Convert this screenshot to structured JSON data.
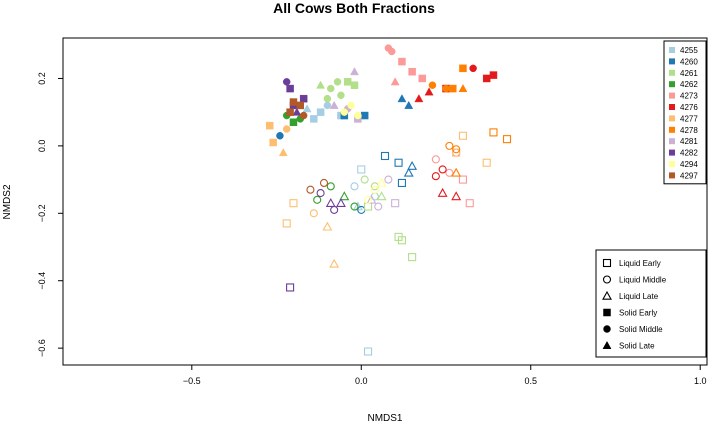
{
  "chart_data": {
    "type": "scatter",
    "title": "All Cows Both Fractions",
    "xlabel": "NMDS1",
    "ylabel": "NMDS2",
    "xlim": [
      -0.88,
      1.02
    ],
    "ylim": [
      -0.65,
      0.32
    ],
    "xticks": [
      -0.5,
      0.0,
      0.5,
      1.0
    ],
    "xtick_labels": [
      "−0.5",
      "0.0",
      "0.5",
      "1.0"
    ],
    "yticks": [
      -0.6,
      -0.4,
      -0.2,
      0.0,
      0.2
    ],
    "ytick_labels": [
      "−0.6",
      "−0.4",
      "−0.2",
      "0.0",
      "0.2"
    ],
    "legend_position": "top-right",
    "shape_legend_position": "bottom-right",
    "series": [
      {
        "name": "4255",
        "color": "#A6CEE3",
        "points": [
          {
            "x": -0.12,
            "y": 0.1,
            "shape": "solid-square"
          },
          {
            "x": -0.14,
            "y": 0.08,
            "shape": "solid-square"
          },
          {
            "x": -0.1,
            "y": 0.12,
            "shape": "solid-circle"
          },
          {
            "x": -0.16,
            "y": 0.11,
            "shape": "solid-triangle"
          },
          {
            "x": -0.06,
            "y": 0.09,
            "shape": "solid-square"
          },
          {
            "x": 0.0,
            "y": -0.07,
            "shape": "liquid-square"
          },
          {
            "x": 0.02,
            "y": -0.61,
            "shape": "liquid-square"
          },
          {
            "x": -0.02,
            "y": -0.12,
            "shape": "liquid-circle"
          },
          {
            "x": 0.04,
            "y": -0.15,
            "shape": "liquid-circle"
          },
          {
            "x": -0.01,
            "y": -0.18,
            "shape": "liquid-triangle"
          }
        ]
      },
      {
        "name": "4260",
        "color": "#1F78B4",
        "points": [
          {
            "x": -0.24,
            "y": 0.03,
            "shape": "solid-circle"
          },
          {
            "x": -0.05,
            "y": 0.09,
            "shape": "solid-square"
          },
          {
            "x": 0.01,
            "y": 0.09,
            "shape": "solid-square"
          },
          {
            "x": 0.12,
            "y": 0.14,
            "shape": "solid-triangle"
          },
          {
            "x": 0.14,
            "y": 0.12,
            "shape": "solid-triangle"
          },
          {
            "x": 0.07,
            "y": -0.03,
            "shape": "liquid-square"
          },
          {
            "x": 0.11,
            "y": -0.05,
            "shape": "liquid-square"
          },
          {
            "x": 0.15,
            "y": -0.06,
            "shape": "liquid-triangle"
          },
          {
            "x": 0.14,
            "y": -0.08,
            "shape": "liquid-triangle"
          },
          {
            "x": 0.12,
            "y": -0.11,
            "shape": "liquid-square"
          },
          {
            "x": 0.0,
            "y": -0.19,
            "shape": "liquid-circle"
          }
        ]
      },
      {
        "name": "4261",
        "color": "#B2DF8A",
        "points": [
          {
            "x": -0.12,
            "y": 0.18,
            "shape": "solid-triangle"
          },
          {
            "x": -0.09,
            "y": 0.17,
            "shape": "solid-circle"
          },
          {
            "x": -0.07,
            "y": 0.19,
            "shape": "solid-circle"
          },
          {
            "x": -0.04,
            "y": 0.19,
            "shape": "solid-square"
          },
          {
            "x": -0.02,
            "y": 0.18,
            "shape": "solid-square"
          },
          {
            "x": -0.1,
            "y": 0.14,
            "shape": "solid-circle"
          },
          {
            "x": -0.06,
            "y": 0.15,
            "shape": "solid-circle"
          },
          {
            "x": 0.01,
            "y": -0.1,
            "shape": "liquid-circle"
          },
          {
            "x": 0.04,
            "y": -0.12,
            "shape": "liquid-circle"
          },
          {
            "x": 0.06,
            "y": -0.15,
            "shape": "liquid-triangle"
          },
          {
            "x": 0.02,
            "y": -0.18,
            "shape": "liquid-square"
          },
          {
            "x": 0.12,
            "y": -0.28,
            "shape": "liquid-square"
          },
          {
            "x": 0.15,
            "y": -0.33,
            "shape": "liquid-square"
          },
          {
            "x": 0.11,
            "y": -0.27,
            "shape": "liquid-square"
          }
        ]
      },
      {
        "name": "4262",
        "color": "#33A02C",
        "points": [
          {
            "x": -0.22,
            "y": 0.09,
            "shape": "solid-circle"
          },
          {
            "x": -0.2,
            "y": 0.07,
            "shape": "solid-square"
          },
          {
            "x": -0.18,
            "y": 0.08,
            "shape": "solid-circle"
          },
          {
            "x": -0.09,
            "y": -0.12,
            "shape": "liquid-circle"
          },
          {
            "x": -0.05,
            "y": -0.15,
            "shape": "liquid-triangle"
          },
          {
            "x": -0.13,
            "y": -0.16,
            "shape": "liquid-circle"
          },
          {
            "x": -0.02,
            "y": -0.18,
            "shape": "liquid-circle"
          }
        ]
      },
      {
        "name": "4273",
        "color": "#FB9A99",
        "points": [
          {
            "x": 0.08,
            "y": 0.29,
            "shape": "solid-circle"
          },
          {
            "x": 0.09,
            "y": 0.28,
            "shape": "solid-circle"
          },
          {
            "x": 0.12,
            "y": 0.25,
            "shape": "solid-square"
          },
          {
            "x": 0.15,
            "y": 0.22,
            "shape": "solid-square"
          },
          {
            "x": 0.1,
            "y": 0.19,
            "shape": "solid-triangle"
          },
          {
            "x": 0.18,
            "y": 0.2,
            "shape": "solid-square"
          },
          {
            "x": 0.22,
            "y": -0.04,
            "shape": "liquid-circle"
          },
          {
            "x": 0.28,
            "y": -0.02,
            "shape": "liquid-circle"
          },
          {
            "x": 0.3,
            "y": -0.1,
            "shape": "liquid-square"
          },
          {
            "x": 0.32,
            "y": -0.17,
            "shape": "liquid-square"
          },
          {
            "x": 0.26,
            "y": -0.08,
            "shape": "liquid-circle"
          }
        ]
      },
      {
        "name": "4276",
        "color": "#E31A1C",
        "points": [
          {
            "x": 0.17,
            "y": 0.14,
            "shape": "solid-triangle"
          },
          {
            "x": 0.2,
            "y": 0.16,
            "shape": "solid-triangle"
          },
          {
            "x": 0.25,
            "y": 0.17,
            "shape": "solid-square"
          },
          {
            "x": 0.33,
            "y": 0.23,
            "shape": "solid-circle"
          },
          {
            "x": 0.37,
            "y": 0.2,
            "shape": "solid-square"
          },
          {
            "x": 0.39,
            "y": 0.21,
            "shape": "solid-square"
          },
          {
            "x": 0.24,
            "y": -0.07,
            "shape": "liquid-circle"
          },
          {
            "x": 0.22,
            "y": -0.09,
            "shape": "liquid-circle"
          },
          {
            "x": 0.24,
            "y": -0.14,
            "shape": "liquid-triangle"
          },
          {
            "x": 0.28,
            "y": -0.15,
            "shape": "liquid-triangle"
          }
        ]
      },
      {
        "name": "4277",
        "color": "#FDBF6F",
        "points": [
          {
            "x": -0.27,
            "y": 0.06,
            "shape": "solid-square"
          },
          {
            "x": -0.26,
            "y": 0.01,
            "shape": "solid-square"
          },
          {
            "x": -0.22,
            "y": 0.05,
            "shape": "solid-circle"
          },
          {
            "x": -0.23,
            "y": -0.02,
            "shape": "solid-triangle"
          },
          {
            "x": -0.2,
            "y": -0.17,
            "shape": "liquid-square"
          },
          {
            "x": -0.22,
            "y": -0.23,
            "shape": "liquid-square"
          },
          {
            "x": -0.14,
            "y": -0.2,
            "shape": "liquid-circle"
          },
          {
            "x": -0.1,
            "y": -0.24,
            "shape": "liquid-triangle"
          },
          {
            "x": -0.08,
            "y": -0.35,
            "shape": "liquid-triangle"
          },
          {
            "x": 0.28,
            "y": -0.02,
            "shape": "liquid-square"
          },
          {
            "x": 0.3,
            "y": 0.03,
            "shape": "liquid-square"
          },
          {
            "x": 0.37,
            "y": -0.05,
            "shape": "liquid-square"
          }
        ]
      },
      {
        "name": "4278",
        "color": "#FF7F00",
        "points": [
          {
            "x": 0.3,
            "y": 0.23,
            "shape": "solid-square"
          },
          {
            "x": 0.27,
            "y": 0.17,
            "shape": "solid-square"
          },
          {
            "x": 0.25,
            "y": 0.17,
            "shape": "solid-circle"
          },
          {
            "x": 0.21,
            "y": 0.18,
            "shape": "solid-circle"
          },
          {
            "x": 0.3,
            "y": 0.17,
            "shape": "solid-triangle"
          },
          {
            "x": 0.26,
            "y": 0.0,
            "shape": "liquid-circle"
          },
          {
            "x": 0.28,
            "y": -0.01,
            "shape": "liquid-circle"
          },
          {
            "x": 0.39,
            "y": 0.04,
            "shape": "liquid-square"
          },
          {
            "x": 0.43,
            "y": 0.02,
            "shape": "liquid-square"
          },
          {
            "x": 0.28,
            "y": -0.08,
            "shape": "liquid-triangle"
          }
        ]
      },
      {
        "name": "4281",
        "color": "#CAB2D6",
        "points": [
          {
            "x": -0.01,
            "y": 0.08,
            "shape": "solid-square"
          },
          {
            "x": -0.04,
            "y": 0.11,
            "shape": "solid-circle"
          },
          {
            "x": -0.08,
            "y": 0.12,
            "shape": "solid-triangle"
          },
          {
            "x": -0.02,
            "y": 0.22,
            "shape": "solid-triangle"
          },
          {
            "x": 0.03,
            "y": -0.16,
            "shape": "liquid-triangle"
          },
          {
            "x": 0.05,
            "y": -0.18,
            "shape": "liquid-circle"
          },
          {
            "x": 0.08,
            "y": -0.1,
            "shape": "liquid-circle"
          },
          {
            "x": 0.1,
            "y": -0.17,
            "shape": "liquid-square"
          }
        ]
      },
      {
        "name": "4282",
        "color": "#6A3D9A",
        "points": [
          {
            "x": -0.22,
            "y": 0.19,
            "shape": "solid-circle"
          },
          {
            "x": -0.21,
            "y": 0.17,
            "shape": "solid-square"
          },
          {
            "x": -0.2,
            "y": 0.12,
            "shape": "solid-square"
          },
          {
            "x": -0.17,
            "y": 0.14,
            "shape": "solid-square"
          },
          {
            "x": -0.19,
            "y": 0.1,
            "shape": "solid-triangle"
          },
          {
            "x": -0.12,
            "y": -0.14,
            "shape": "liquid-circle"
          },
          {
            "x": -0.09,
            "y": -0.17,
            "shape": "liquid-triangle"
          },
          {
            "x": -0.08,
            "y": -0.19,
            "shape": "liquid-circle"
          },
          {
            "x": -0.06,
            "y": -0.17,
            "shape": "liquid-triangle"
          },
          {
            "x": -0.21,
            "y": -0.42,
            "shape": "liquid-square"
          }
        ]
      },
      {
        "name": "4294",
        "color": "#FFFF99",
        "points": [
          {
            "x": -0.03,
            "y": 0.12,
            "shape": "solid-circle"
          },
          {
            "x": -0.05,
            "y": 0.1,
            "shape": "solid-circle"
          },
          {
            "x": -0.01,
            "y": 0.09,
            "shape": "solid-circle"
          },
          {
            "x": 0.04,
            "y": -0.13,
            "shape": "liquid-circle"
          },
          {
            "x": 0.02,
            "y": -0.16,
            "shape": "liquid-circle"
          },
          {
            "x": 0.06,
            "y": -0.11,
            "shape": "liquid-triangle"
          }
        ]
      },
      {
        "name": "4297",
        "color": "#B15928",
        "points": [
          {
            "x": -0.2,
            "y": 0.13,
            "shape": "solid-square"
          },
          {
            "x": -0.18,
            "y": 0.12,
            "shape": "solid-square"
          },
          {
            "x": -0.21,
            "y": 0.1,
            "shape": "solid-square"
          },
          {
            "x": -0.17,
            "y": 0.09,
            "shape": "solid-circle"
          },
          {
            "x": -0.15,
            "y": -0.13,
            "shape": "liquid-circle"
          },
          {
            "x": -0.11,
            "y": -0.11,
            "shape": "liquid-circle"
          }
        ]
      }
    ],
    "shape_legend": [
      {
        "label": "Liquid Early",
        "shape": "liquid-square"
      },
      {
        "label": "Liquid Middle",
        "shape": "liquid-circle"
      },
      {
        "label": "Liquid Late",
        "shape": "liquid-triangle"
      },
      {
        "label": "Solid Early",
        "shape": "solid-square"
      },
      {
        "label": "Solid Middle",
        "shape": "solid-circle"
      },
      {
        "label": "Solid Late",
        "shape": "solid-triangle"
      }
    ]
  }
}
